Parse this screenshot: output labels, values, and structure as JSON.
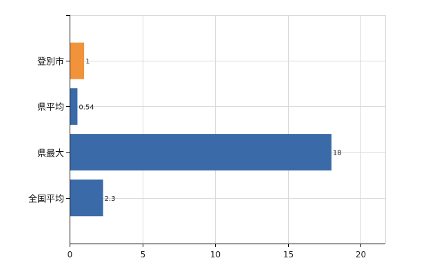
{
  "chart_data": {
    "type": "bar",
    "orientation": "horizontal",
    "title": "",
    "xlabel": "",
    "ylabel": "",
    "categories": [
      "登別市",
      "県平均",
      "県最大",
      "全国平均"
    ],
    "values": [
      1,
      0.54,
      18,
      2.3
    ],
    "data_labels": [
      "1",
      "0.54",
      "18",
      "2.3"
    ],
    "bar_colors": [
      "#f0933a",
      "#3a6aa8",
      "#3a6aa8",
      "#3a6aa8"
    ],
    "xlim": [
      0,
      21.7
    ],
    "x_ticks": [
      0,
      5,
      10,
      15,
      20
    ],
    "x_tick_labels": [
      "0",
      "5",
      "10",
      "15",
      "20"
    ],
    "grid": true,
    "legend": "none"
  }
}
